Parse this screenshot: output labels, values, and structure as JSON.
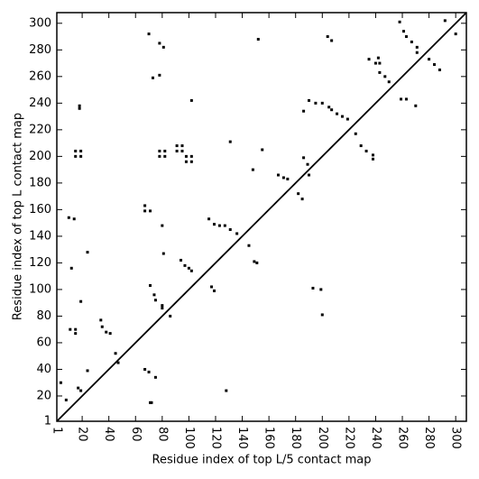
{
  "chart_data": {
    "type": "scatter",
    "x_label": "Residue index of top L/5 contact map",
    "y_label": "Residue index of top L contact map",
    "color": "#000000",
    "xlim": [
      1,
      308
    ],
    "ylim": [
      1,
      308
    ],
    "xticks": [
      1,
      20,
      40,
      60,
      80,
      100,
      120,
      140,
      160,
      180,
      200,
      220,
      240,
      260,
      280,
      300
    ],
    "yticks": [
      1,
      20,
      40,
      60,
      80,
      100,
      120,
      140,
      160,
      180,
      200,
      220,
      240,
      260,
      280,
      300
    ],
    "diagonal": true,
    "x": [
      70,
      78,
      81,
      73,
      78,
      102,
      152,
      18,
      18,
      15,
      19,
      15,
      19,
      78,
      82,
      78,
      82,
      91,
      95,
      91,
      95,
      98,
      102,
      98,
      102,
      131,
      155,
      148,
      67,
      71,
      67,
      115,
      119,
      123,
      127,
      131,
      136,
      10,
      14,
      80,
      81,
      12,
      24,
      94,
      97,
      100,
      102,
      117,
      119,
      145,
      149,
      151,
      71,
      74,
      75,
      80,
      80,
      86,
      19,
      11,
      15,
      15,
      34,
      35,
      38,
      41,
      47,
      45,
      4,
      24,
      17,
      19,
      8,
      67,
      70,
      75,
      71,
      72,
      128,
      292,
      300,
      258,
      261,
      263,
      267,
      271,
      271,
      280,
      284,
      288,
      235,
      240,
      243,
      242,
      243,
      247,
      250,
      259,
      263,
      270,
      204,
      207,
      190,
      195,
      200,
      205,
      207,
      211,
      215,
      219,
      225,
      229,
      233,
      238,
      238,
      186,
      189,
      190,
      167,
      171,
      174,
      182,
      185,
      186,
      193,
      199,
      200
    ],
    "values": [
      292,
      285,
      282,
      259,
      261,
      242,
      288,
      238,
      236,
      204,
      204,
      200,
      200,
      204,
      204,
      200,
      200,
      208,
      208,
      204,
      204,
      200,
      200,
      196,
      196,
      211,
      205,
      190,
      163,
      159,
      159,
      153,
      149,
      148,
      148,
      145,
      142,
      154,
      153,
      148,
      127,
      116,
      128,
      122,
      118,
      116,
      114,
      102,
      99,
      133,
      121,
      120,
      103,
      96,
      92,
      88,
      86,
      80,
      91,
      70,
      70,
      67,
      77,
      72,
      68,
      67,
      45,
      52,
      30,
      39,
      26,
      24,
      17,
      40,
      38,
      34,
      15,
      15,
      24,
      302,
      292,
      301,
      294,
      290,
      286,
      282,
      278,
      273,
      269,
      265,
      273,
      270,
      270,
      274,
      263,
      260,
      256,
      243,
      243,
      238,
      290,
      287,
      242,
      240,
      240,
      237,
      235,
      232,
      230,
      228,
      217,
      208,
      204,
      201,
      198,
      199,
      194,
      186,
      186,
      184,
      183,
      172,
      168,
      234,
      101,
      100,
      81
    ]
  }
}
